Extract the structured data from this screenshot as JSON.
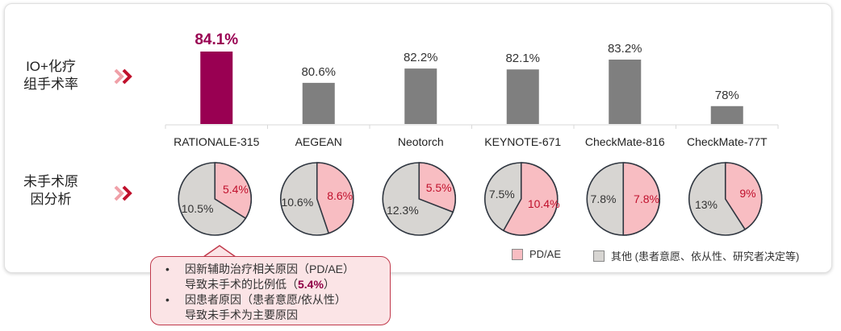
{
  "row_labels": {
    "surgery_rate": [
      "IO+化疗",
      "组手术率"
    ],
    "no_surgery": [
      "未手术原",
      "因分析"
    ]
  },
  "colors": {
    "highlight": "#990052",
    "bar": "#7f7f7f",
    "pd_ae": "#f8bdc2",
    "other": "#d7d5d2",
    "chevron_dark": "#c0102c",
    "chevron_light": "#f0a0a8"
  },
  "chart_data": [
    {
      "type": "bar",
      "categories": [
        "RATIONALE-315",
        "AEGEAN",
        "Neotorch",
        "KEYNOTE-671",
        "CheckMate-816",
        "CheckMate-77T"
      ],
      "values": [
        84.1,
        80.6,
        82.2,
        82.1,
        83.2,
        78
      ],
      "data_labels": [
        "84.1%",
        "80.6%",
        "82.2%",
        "82.1%",
        "83.2%",
        "78%"
      ],
      "highlight_index": 0,
      "ylim": [
        76,
        85
      ],
      "grid": false
    },
    {
      "type": "pie",
      "legend": [
        "PD/AE",
        "其他 (患者意愿、依从性、研究者决定等)"
      ],
      "legend_position": "bottom-right",
      "pies": [
        {
          "pd_ae": 5.4,
          "other": 10.5,
          "pd_ae_label": "5.4%",
          "other_label": "10.5%"
        },
        {
          "pd_ae": 8.6,
          "other": 10.6,
          "pd_ae_label": "8.6%",
          "other_label": "10.6%"
        },
        {
          "pd_ae": 5.5,
          "other": 12.3,
          "pd_ae_label": "5.5%",
          "other_label": "12.3%"
        },
        {
          "pd_ae": 10.4,
          "other": 7.5,
          "pd_ae_label": "10.4%",
          "other_label": "7.5%"
        },
        {
          "pd_ae": 7.8,
          "other": 7.8,
          "pd_ae_label": "7.8%",
          "other_label": "7.8%"
        },
        {
          "pd_ae": 9,
          "other": 13,
          "pd_ae_label": "9%",
          "other_label": "13%"
        }
      ]
    }
  ],
  "callout": {
    "bullet": "•",
    "item1_line1": "因新辅助治疗相关原因（PD/AE）",
    "item1_line2_pre": "导致未手术的比例低（",
    "item1_line2_value": "5.4%",
    "item1_line2_post": "）",
    "item2_line1": "因患者原因（患者意愿/依从性）",
    "item2_line2": "导致未手术为主要原因"
  }
}
